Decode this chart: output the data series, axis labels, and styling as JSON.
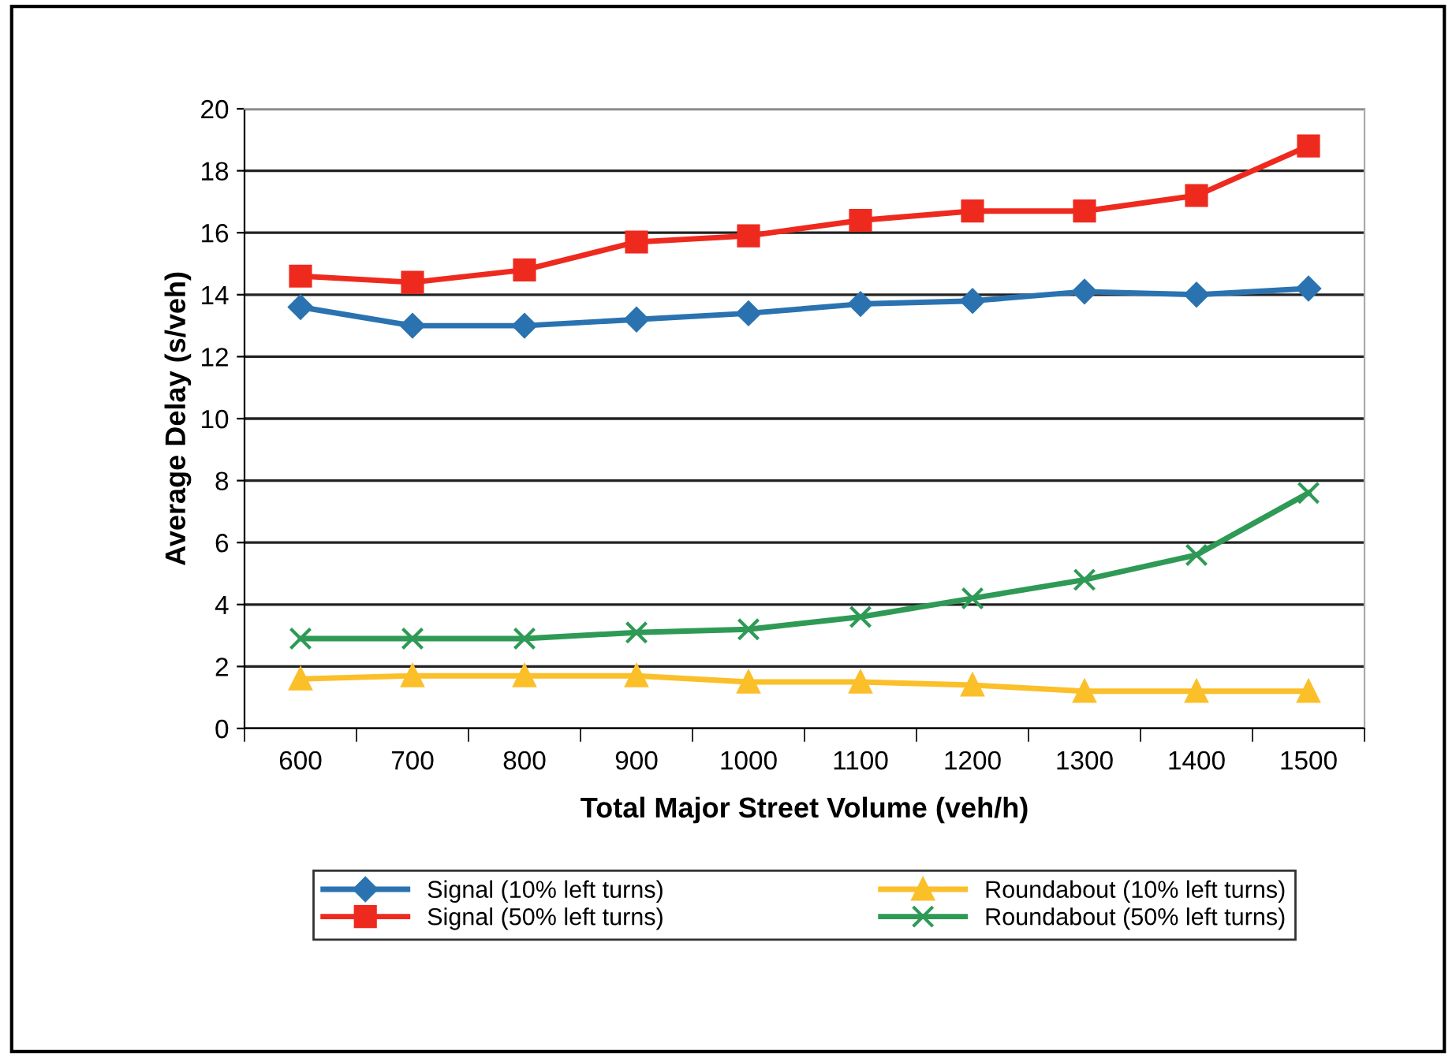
{
  "chart_data": {
    "type": "line",
    "xlabel": "Total Major Street Volume (veh/h)",
    "ylabel": "Average Delay (s/veh)",
    "categories": [
      "600",
      "700",
      "800",
      "900",
      "1000",
      "1100",
      "1200",
      "1300",
      "1400",
      "1500"
    ],
    "ylim": [
      0,
      20
    ],
    "yticks": [
      0,
      2,
      4,
      6,
      8,
      10,
      12,
      14,
      16,
      18,
      20
    ],
    "grid": "y",
    "legend": "bottom",
    "series": [
      {
        "name": "Signal (10% left turns)",
        "color": "#2a73b0",
        "marker": "diamond",
        "values": [
          13.6,
          13.0,
          13.0,
          13.2,
          13.4,
          13.7,
          13.8,
          14.1,
          14.0,
          14.2
        ]
      },
      {
        "name": "Signal (50% left turns)",
        "color": "#ee2a1f",
        "marker": "square",
        "values": [
          14.6,
          14.4,
          14.8,
          15.7,
          15.9,
          16.4,
          16.7,
          16.7,
          17.2,
          18.8
        ]
      },
      {
        "name": "Roundabout (10% left turns)",
        "color": "#fbbf2a",
        "marker": "triangle",
        "values": [
          1.6,
          1.7,
          1.7,
          1.7,
          1.5,
          1.5,
          1.4,
          1.2,
          1.2,
          1.2
        ]
      },
      {
        "name": "Roundabout (50% left turns)",
        "color": "#2e9a55",
        "marker": "cross",
        "values": [
          2.9,
          2.9,
          2.9,
          3.1,
          3.2,
          3.6,
          4.2,
          4.8,
          5.6,
          7.6
        ]
      }
    ]
  }
}
